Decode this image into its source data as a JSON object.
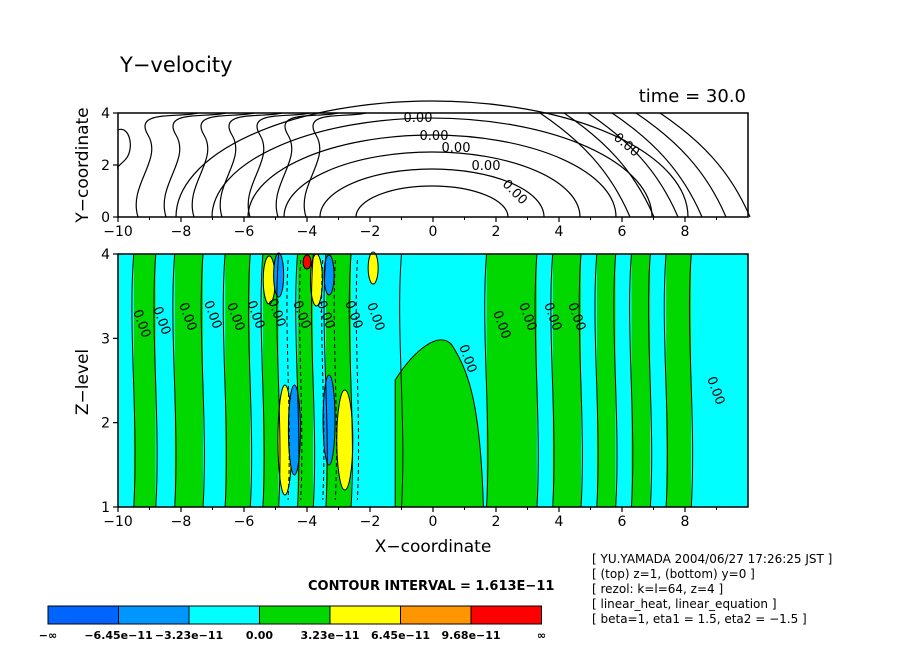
{
  "chart_data": [
    {
      "type": "contour",
      "title": "Y−velocity",
      "subtitle": "time = 30.0",
      "xlabel": "",
      "ylabel": "Y−coordinate",
      "xlim": [
        -10,
        10
      ],
      "ylim": [
        0,
        4
      ],
      "x_ticks": [
        "−10",
        "−8",
        "−6",
        "−4",
        "−2",
        "0",
        "2",
        "4",
        "6",
        "8"
      ],
      "y_ticks": [
        "0",
        "2",
        "4"
      ],
      "contour_labels": [
        "0.00",
        "0.00",
        "0.00",
        "0.00",
        "0.00",
        "0.00"
      ]
    },
    {
      "type": "contour",
      "xlabel": "X−coordinate",
      "ylabel": "Z−level",
      "xlim": [
        -10,
        10
      ],
      "ylim": [
        1,
        4
      ],
      "x_ticks": [
        "−10",
        "−8",
        "−6",
        "−4",
        "−2",
        "0",
        "2",
        "4",
        "6",
        "8"
      ],
      "y_ticks": [
        "1",
        "2",
        "3",
        "4"
      ],
      "contour_labels": [
        "0.00",
        "0.00",
        "0.00",
        "0.00",
        "0.00",
        "0.00",
        "0.00",
        "0.00",
        "0.00",
        "0.00",
        "0.00",
        "0.00",
        "0.00",
        "0.00",
        "0.00",
        "0.00",
        "0.00"
      ],
      "fill_bands": [
        {
          "color": "#00ffff",
          "x": [
            -10,
            -9.5
          ]
        },
        {
          "color": "#00d800",
          "x": [
            -9.5,
            -8.8
          ]
        },
        {
          "color": "#00ffff",
          "x": [
            -8.8,
            -8.2
          ]
        },
        {
          "color": "#00d800",
          "x": [
            -8.2,
            -7.3
          ]
        },
        {
          "color": "#00ffff",
          "x": [
            -7.3,
            -6.6
          ]
        },
        {
          "color": "#00d800",
          "x": [
            -6.6,
            -5.8
          ]
        },
        {
          "color": "#00ffff",
          "x": [
            -5.8,
            -5.4
          ]
        },
        {
          "color": "#00d800",
          "x": [
            -5.4,
            -4.9
          ]
        },
        {
          "color": "#00ffff",
          "x": [
            -4.9,
            -4.3
          ]
        },
        {
          "color": "#00d800",
          "x": [
            -4.3,
            -3.8
          ]
        },
        {
          "color": "#00ffff",
          "x": [
            -3.8,
            -3.4
          ]
        },
        {
          "color": "#00d800",
          "x": [
            -3.4,
            -2.6
          ]
        },
        {
          "color": "#00ffff",
          "x": [
            -2.6,
            -1.0
          ]
        },
        {
          "color": "#00ffff",
          "x": [
            -1.0,
            1.7
          ]
        },
        {
          "color": "#00d800",
          "x": [
            1.7,
            3.3
          ]
        },
        {
          "color": "#00ffff",
          "x": [
            3.3,
            3.8
          ]
        },
        {
          "color": "#00d800",
          "x": [
            3.8,
            4.7
          ]
        },
        {
          "color": "#00ffff",
          "x": [
            4.7,
            5.2
          ]
        },
        {
          "color": "#00d800",
          "x": [
            5.2,
            5.8
          ]
        },
        {
          "color": "#00ffff",
          "x": [
            5.8,
            6.3
          ]
        },
        {
          "color": "#00d800",
          "x": [
            6.3,
            6.9
          ]
        },
        {
          "color": "#00ffff",
          "x": [
            6.9,
            7.4
          ]
        },
        {
          "color": "#00d800",
          "x": [
            7.4,
            8.2
          ]
        },
        {
          "color": "#00ffff",
          "x": [
            8.2,
            10
          ]
        }
      ]
    }
  ],
  "contour_interval": "CONTOUR INTERVAL = 1.613E−11",
  "colorbar": {
    "labels": [
      "−∞",
      "−6.45e−11",
      "−3.23e−11",
      "0.00",
      "3.23e−11",
      "6.45e−11",
      "9.68e−11",
      "∞"
    ],
    "colors": [
      "#0064ff",
      "#0096ff",
      "#00ffff",
      "#00d800",
      "#ffff00",
      "#ff9600",
      "#ff0000"
    ]
  },
  "info_lines": [
    "[ YU.YAMADA 2004/06/27 17:26:25 JST ]",
    "[ (top) z=1, (bottom) y=0 ]",
    "[ rezol: k=l=64, z=4 ]",
    "[ linear_heat, linear_equation ]",
    "[ beta=1, eta1 = 1.5, eta2 = −1.5 ]"
  ]
}
